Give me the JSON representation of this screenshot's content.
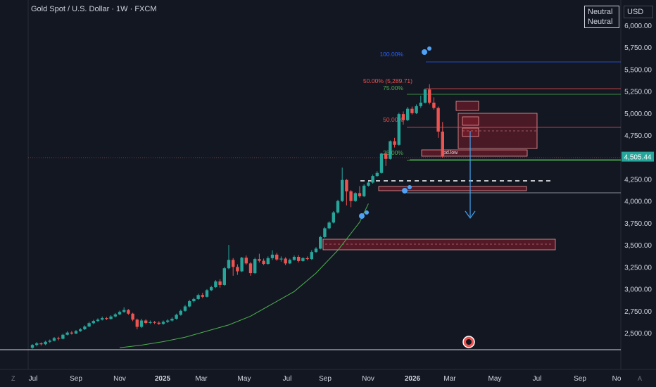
{
  "chart_title": "Gold Spot / U.S. Dollar · 1W · FXCM",
  "sentiment_badge": [
    "Neutral",
    "Neutral"
  ],
  "currency_label": "USD",
  "corner_left": "Z",
  "corner_right": "A",
  "colors": {
    "background": "#131722",
    "up": "#26a69a",
    "down": "#ef5350",
    "ma": "#4caf50",
    "zone": "#8b1c2c",
    "fib_top": "#2962ff"
  },
  "chart_data": {
    "type": "candlestick",
    "ylim": [
      2300,
      6150
    ],
    "y_ticks": [
      2500,
      2750,
      3000,
      3250,
      3500,
      3750,
      4000,
      4250,
      4500,
      4750,
      5000,
      5250,
      5500,
      5750,
      6000
    ],
    "y_tick_labels": [
      "2,500.00",
      "2,750.00",
      "3,000.00",
      "3,250.00",
      "3,500.00",
      "3,750.00",
      "4,000.00",
      "4,250.00",
      "4,500.00",
      "4,750.00",
      "5,000.00",
      "5,250.00",
      "5,500.00",
      "5,750.00",
      "6,000.00"
    ],
    "x_labels": [
      "Jul",
      "Sep",
      "Nov",
      "2025",
      "Mar",
      "May",
      "Jul",
      "Sep",
      "Nov",
      "2026",
      "Mar",
      "May",
      "Jul",
      "Sep",
      "No"
    ],
    "last_price": 4505.44,
    "last_price_label": "4,505.44",
    "fib_levels": [
      {
        "label": "100.00%",
        "price": 5600,
        "color": "#2962ff"
      },
      {
        "label": "50.00% (5,289.71)",
        "price": 5289.71,
        "color": "#ef5350"
      },
      {
        "label": "75.00%",
        "price": 5220,
        "color": "#4caf50"
      },
      {
        "label": "50.00%",
        "price": 4845,
        "color": "#ef5350"
      },
      {
        "label": "25.00%",
        "price": 4470,
        "color": "#4caf50"
      }
    ],
    "zone_labels": [
      "pd.low"
    ],
    "moving_average": [
      [
        20,
        2330
      ],
      [
        25,
        2360
      ],
      [
        30,
        2400
      ],
      [
        35,
        2450
      ],
      [
        40,
        2520
      ],
      [
        45,
        2590
      ],
      [
        50,
        2690
      ],
      [
        55,
        2830
      ],
      [
        60,
        2970
      ],
      [
        65,
        3180
      ],
      [
        70,
        3440
      ],
      [
        75,
        3760
      ],
      [
        77,
        3970
      ]
    ],
    "candles": [
      [
        2330,
        2362,
        2318,
        2372
      ],
      [
        2362,
        2380,
        2345,
        2395
      ],
      [
        2380,
        2370,
        2355,
        2392
      ],
      [
        2370,
        2398,
        2360,
        2410
      ],
      [
        2398,
        2410,
        2385,
        2424
      ],
      [
        2410,
        2440,
        2402,
        2452
      ],
      [
        2440,
        2432,
        2415,
        2455
      ],
      [
        2432,
        2478,
        2425,
        2490
      ],
      [
        2478,
        2503,
        2470,
        2518
      ],
      [
        2503,
        2492,
        2480,
        2520
      ],
      [
        2492,
        2520,
        2485,
        2532
      ],
      [
        2520,
        2540,
        2510,
        2555
      ],
      [
        2540,
        2572,
        2532,
        2585
      ],
      [
        2572,
        2610,
        2565,
        2625
      ],
      [
        2610,
        2635,
        2598,
        2648
      ],
      [
        2635,
        2650,
        2622,
        2665
      ],
      [
        2650,
        2668,
        2640,
        2685
      ],
      [
        2668,
        2658,
        2645,
        2680
      ],
      [
        2658,
        2686,
        2650,
        2700
      ],
      [
        2686,
        2710,
        2675,
        2725
      ],
      [
        2710,
        2738,
        2700,
        2752
      ],
      [
        2738,
        2760,
        2728,
        2790
      ],
      [
        2760,
        2718,
        2705,
        2770
      ],
      [
        2718,
        2650,
        2632,
        2728
      ],
      [
        2650,
        2568,
        2540,
        2662
      ],
      [
        2568,
        2640,
        2555,
        2660
      ],
      [
        2640,
        2612,
        2598,
        2655
      ],
      [
        2612,
        2622,
        2600,
        2640
      ],
      [
        2622,
        2615,
        2600,
        2636
      ],
      [
        2615,
        2602,
        2590,
        2632
      ],
      [
        2602,
        2625,
        2592,
        2640
      ],
      [
        2625,
        2640,
        2612,
        2655
      ],
      [
        2640,
        2660,
        2628,
        2675
      ],
      [
        2660,
        2705,
        2650,
        2718
      ],
      [
        2705,
        2750,
        2695,
        2765
      ],
      [
        2750,
        2800,
        2740,
        2815
      ],
      [
        2800,
        2860,
        2790,
        2875
      ],
      [
        2860,
        2885,
        2845,
        2900
      ],
      [
        2885,
        2930,
        2875,
        2945
      ],
      [
        2930,
        2910,
        2895,
        2955
      ],
      [
        2910,
        2985,
        2902,
        2998
      ],
      [
        2985,
        3020,
        2975,
        3035
      ],
      [
        3020,
        3085,
        3010,
        3100
      ],
      [
        3085,
        3045,
        3015,
        3110
      ],
      [
        3045,
        3235,
        3035,
        3250
      ],
      [
        3235,
        3330,
        3225,
        3500
      ],
      [
        3330,
        3250,
        3150,
        3350
      ],
      [
        3250,
        3200,
        3160,
        3280
      ],
      [
        3200,
        3355,
        3190,
        3365
      ],
      [
        3355,
        3290,
        3275,
        3380
      ],
      [
        3290,
        3180,
        3150,
        3305
      ],
      [
        3180,
        3340,
        3170,
        3355
      ],
      [
        3340,
        3320,
        3300,
        3400
      ],
      [
        3320,
        3285,
        3270,
        3345
      ],
      [
        3285,
        3350,
        3275,
        3370
      ],
      [
        3350,
        3390,
        3330,
        3440
      ],
      [
        3390,
        3335,
        3320,
        3410
      ],
      [
        3335,
        3345,
        3310,
        3370
      ],
      [
        3345,
        3290,
        3270,
        3360
      ],
      [
        3290,
        3330,
        3282,
        3345
      ],
      [
        3330,
        3365,
        3322,
        3380
      ],
      [
        3365,
        3318,
        3300,
        3385
      ],
      [
        3318,
        3350,
        3310,
        3362
      ],
      [
        3350,
        3340,
        3325,
        3370
      ],
      [
        3340,
        3420,
        3330,
        3440
      ],
      [
        3420,
        3458,
        3410,
        3475
      ],
      [
        3458,
        3590,
        3450,
        3605
      ],
      [
        3590,
        3690,
        3580,
        3705
      ],
      [
        3690,
        3755,
        3678,
        3770
      ],
      [
        3755,
        3870,
        3745,
        3885
      ],
      [
        3870,
        4000,
        3858,
        4015
      ],
      [
        4000,
        4240,
        3990,
        4380
      ],
      [
        4240,
        4110,
        3950,
        4250
      ],
      [
        4110,
        4000,
        3930,
        4125
      ],
      [
        4000,
        4090,
        3990,
        4100
      ],
      [
        4090,
        4055,
        4040,
        4170
      ],
      [
        4055,
        4175,
        4045,
        4190
      ],
      [
        4175,
        4210,
        4165,
        4225
      ],
      [
        4210,
        4285,
        4198,
        4300
      ],
      [
        4285,
        4320,
        4275,
        4340
      ],
      [
        4320,
        4540,
        4312,
        4550
      ],
      [
        4540,
        4480,
        4400,
        4550
      ],
      [
        4480,
        4680,
        4472,
        4690
      ],
      [
        4680,
        4640,
        4610,
        4720
      ],
      [
        4640,
        4990,
        4630,
        5005
      ],
      [
        4990,
        4920,
        4870,
        5020
      ],
      [
        4920,
        5050,
        4910,
        5070
      ],
      [
        5050,
        5000,
        4985,
        5075
      ],
      [
        5000,
        5080,
        4990,
        5100
      ],
      [
        5080,
        5120,
        5060,
        5200
      ],
      [
        5120,
        5270,
        5110,
        5283
      ],
      [
        5270,
        5120,
        5100,
        5330
      ],
      [
        5120,
        5060,
        5040,
        5180
      ],
      [
        5060,
        4790,
        4720,
        5075
      ],
      [
        4790,
        4505,
        4495,
        4900
      ]
    ]
  }
}
